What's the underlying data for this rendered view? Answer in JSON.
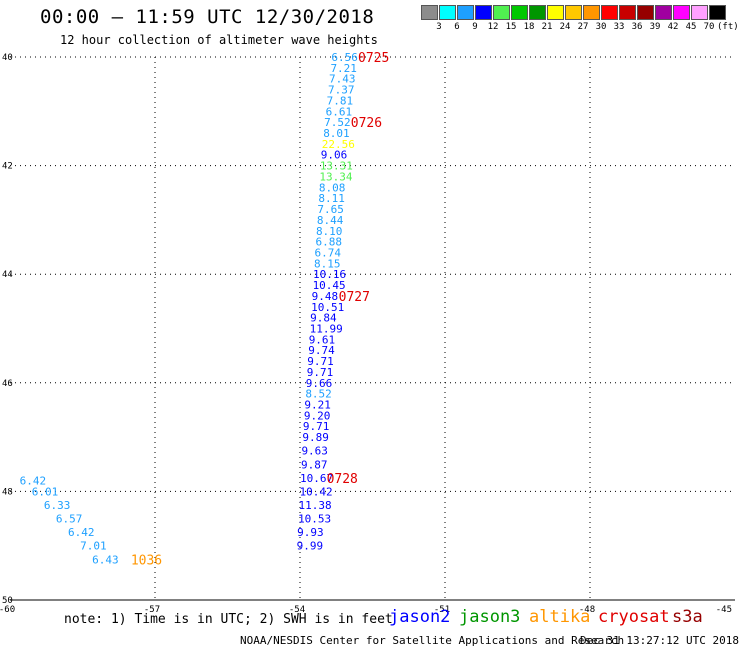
{
  "title": "00:00 – 11:59 UTC 12/30/2018",
  "subtitle": "12 hour collection of altimeter wave heights",
  "legend": {
    "labels": [
      "3",
      "6",
      "9",
      "12",
      "15",
      "18",
      "21",
      "24",
      "27",
      "30",
      "33",
      "36",
      "39",
      "42",
      "45",
      "70",
      "(ft)"
    ],
    "colors": [
      "#8c8c8c",
      "#00ffff",
      "#1ea0ff",
      "#0000ff",
      "#50f050",
      "#00c800",
      "#009600",
      "#ffff00",
      "#ffc800",
      "#ff9600",
      "#ff0000",
      "#c80000",
      "#960000",
      "#a000a0",
      "#ff00ff",
      "#ffa0ff",
      "#000000"
    ]
  },
  "axes": {
    "lat_labels": [
      "40",
      "42",
      "44",
      "46",
      "48",
      "50"
    ],
    "lon_labels": [
      "-60",
      "-57",
      "-54",
      "-51",
      "-48",
      "-45"
    ]
  },
  "chart_data": {
    "type": "scatter",
    "xlim": [
      -60,
      -45
    ],
    "ylim": [
      -50,
      -40
    ],
    "grid": true,
    "points": [
      {
        "lon": -53.35,
        "lat": -40.0,
        "text": "6.56",
        "color": "#1ea0ff"
      },
      {
        "lon": -53.37,
        "lat": -40.2,
        "text": "7.21",
        "color": "#1ea0ff"
      },
      {
        "lon": -53.4,
        "lat": -40.4,
        "text": "7.43",
        "color": "#1ea0ff"
      },
      {
        "lon": -53.42,
        "lat": -40.6,
        "text": "7.37",
        "color": "#1ea0ff"
      },
      {
        "lon": -53.45,
        "lat": -40.8,
        "text": "7.81",
        "color": "#1ea0ff"
      },
      {
        "lon": -53.47,
        "lat": -41.0,
        "text": "6.61",
        "color": "#1ea0ff"
      },
      {
        "lon": -53.5,
        "lat": -41.2,
        "text": "7.52",
        "color": "#1ea0ff"
      },
      {
        "lon": -53.52,
        "lat": -41.4,
        "text": "8.01",
        "color": "#1ea0ff"
      },
      {
        "lon": -53.55,
        "lat": -41.6,
        "text": "22.56",
        "color": "#ffff00"
      },
      {
        "lon": -53.57,
        "lat": -41.8,
        "text": "9.06",
        "color": "#0000ff"
      },
      {
        "lon": -53.59,
        "lat": -42.0,
        "text": "13.31",
        "color": "#50f050"
      },
      {
        "lon": -53.6,
        "lat": -42.2,
        "text": "13.34",
        "color": "#50f050"
      },
      {
        "lon": -53.61,
        "lat": -42.4,
        "text": "8.08",
        "color": "#1ea0ff"
      },
      {
        "lon": -53.62,
        "lat": -42.6,
        "text": "8.11",
        "color": "#1ea0ff"
      },
      {
        "lon": -53.64,
        "lat": -42.8,
        "text": "7.65",
        "color": "#1ea0ff"
      },
      {
        "lon": -53.65,
        "lat": -43.0,
        "text": "8.44",
        "color": "#1ea0ff"
      },
      {
        "lon": -53.67,
        "lat": -43.2,
        "text": "8.10",
        "color": "#1ea0ff"
      },
      {
        "lon": -53.68,
        "lat": -43.4,
        "text": "6.88",
        "color": "#1ea0ff"
      },
      {
        "lon": -53.7,
        "lat": -43.6,
        "text": "6.74",
        "color": "#1ea0ff"
      },
      {
        "lon": -53.71,
        "lat": -43.8,
        "text": "8.15",
        "color": "#1ea0ff"
      },
      {
        "lon": -53.73,
        "lat": -44.0,
        "text": "10.16",
        "color": "#0000ff"
      },
      {
        "lon": -53.74,
        "lat": -44.2,
        "text": "10.45",
        "color": "#0000ff"
      },
      {
        "lon": -53.76,
        "lat": -44.4,
        "text": "9.48",
        "color": "#0000ff"
      },
      {
        "lon": -53.77,
        "lat": -44.6,
        "text": "10.51",
        "color": "#0000ff"
      },
      {
        "lon": -53.79,
        "lat": -44.8,
        "text": "9.84",
        "color": "#0000ff"
      },
      {
        "lon": -53.8,
        "lat": -45.0,
        "text": "11.99",
        "color": "#0000ff"
      },
      {
        "lon": -53.82,
        "lat": -45.2,
        "text": "9.61",
        "color": "#0000ff"
      },
      {
        "lon": -53.83,
        "lat": -45.4,
        "text": "9.74",
        "color": "#0000ff"
      },
      {
        "lon": -53.85,
        "lat": -45.6,
        "text": "9.71",
        "color": "#0000ff"
      },
      {
        "lon": -53.86,
        "lat": -45.8,
        "text": "9.71",
        "color": "#0000ff"
      },
      {
        "lon": -53.88,
        "lat": -46.0,
        "text": "9.66",
        "color": "#0000ff"
      },
      {
        "lon": -53.89,
        "lat": -46.2,
        "text": "8.52",
        "color": "#1ea0ff"
      },
      {
        "lon": -53.91,
        "lat": -46.4,
        "text": "9.21",
        "color": "#0000ff"
      },
      {
        "lon": -53.92,
        "lat": -46.6,
        "text": "9.20",
        "color": "#0000ff"
      },
      {
        "lon": -53.94,
        "lat": -46.8,
        "text": "9.71",
        "color": "#0000ff"
      },
      {
        "lon": -53.95,
        "lat": -47.0,
        "text": "9.89",
        "color": "#0000ff"
      },
      {
        "lon": -53.97,
        "lat": -47.25,
        "text": "9.63",
        "color": "#0000ff"
      },
      {
        "lon": -53.98,
        "lat": -47.5,
        "text": "9.87",
        "color": "#0000ff"
      },
      {
        "lon": -54.0,
        "lat": -47.75,
        "text": "10.67",
        "color": "#0000ff"
      },
      {
        "lon": -54.01,
        "lat": -48.0,
        "text": "10.42",
        "color": "#0000ff"
      },
      {
        "lon": -54.03,
        "lat": -48.25,
        "text": "11.38",
        "color": "#0000ff"
      },
      {
        "lon": -54.04,
        "lat": -48.5,
        "text": "10.53",
        "color": "#0000ff"
      },
      {
        "lon": -54.06,
        "lat": -48.75,
        "text": "9.93",
        "color": "#0000ff"
      },
      {
        "lon": -54.07,
        "lat": -49.0,
        "text": "9.99",
        "color": "#0000ff"
      },
      {
        "lon": -59.8,
        "lat": -47.8,
        "text": "6.42",
        "color": "#1ea0ff"
      },
      {
        "lon": -59.55,
        "lat": -48.0,
        "text": "6.01",
        "color": "#1ea0ff"
      },
      {
        "lon": -59.3,
        "lat": -48.25,
        "text": "6.33",
        "color": "#1ea0ff"
      },
      {
        "lon": -59.05,
        "lat": -48.5,
        "text": "6.57",
        "color": "#1ea0ff"
      },
      {
        "lon": -58.8,
        "lat": -48.75,
        "text": "6.42",
        "color": "#1ea0ff"
      },
      {
        "lon": -58.55,
        "lat": -49.0,
        "text": "7.01",
        "color": "#1ea0ff"
      },
      {
        "lon": -58.3,
        "lat": -49.25,
        "text": "6.43",
        "color": "#1ea0ff"
      }
    ],
    "time_labels": [
      {
        "lon": -52.8,
        "lat": -40.0,
        "text": "0725",
        "color": "#e00000"
      },
      {
        "lon": -52.95,
        "lat": -41.2,
        "text": "0726",
        "color": "#e00000"
      },
      {
        "lon": -53.2,
        "lat": -44.4,
        "text": "0727",
        "color": "#e00000"
      },
      {
        "lon": -53.45,
        "lat": -47.75,
        "text": "0728",
        "color": "#e00000"
      },
      {
        "lon": -57.5,
        "lat": -49.25,
        "text": "1036",
        "color": "#ff9600"
      }
    ]
  },
  "footer": {
    "note": "note: 1) Time is in UTC; 2) SWH is in feet",
    "satellites": [
      {
        "name": "jason2",
        "color": "#0000ff"
      },
      {
        "name": "jason3",
        "color": "#009600"
      },
      {
        "name": "altika",
        "color": "#ff9600"
      },
      {
        "name": "cryosat",
        "color": "#e00000"
      },
      {
        "name": "s3a",
        "color": "#960000"
      }
    ],
    "credit": "NOAA/NESDIS Center for Satellite Applications and Research",
    "timestamp": "Dec 31 13:27:12 UTC 2018"
  }
}
